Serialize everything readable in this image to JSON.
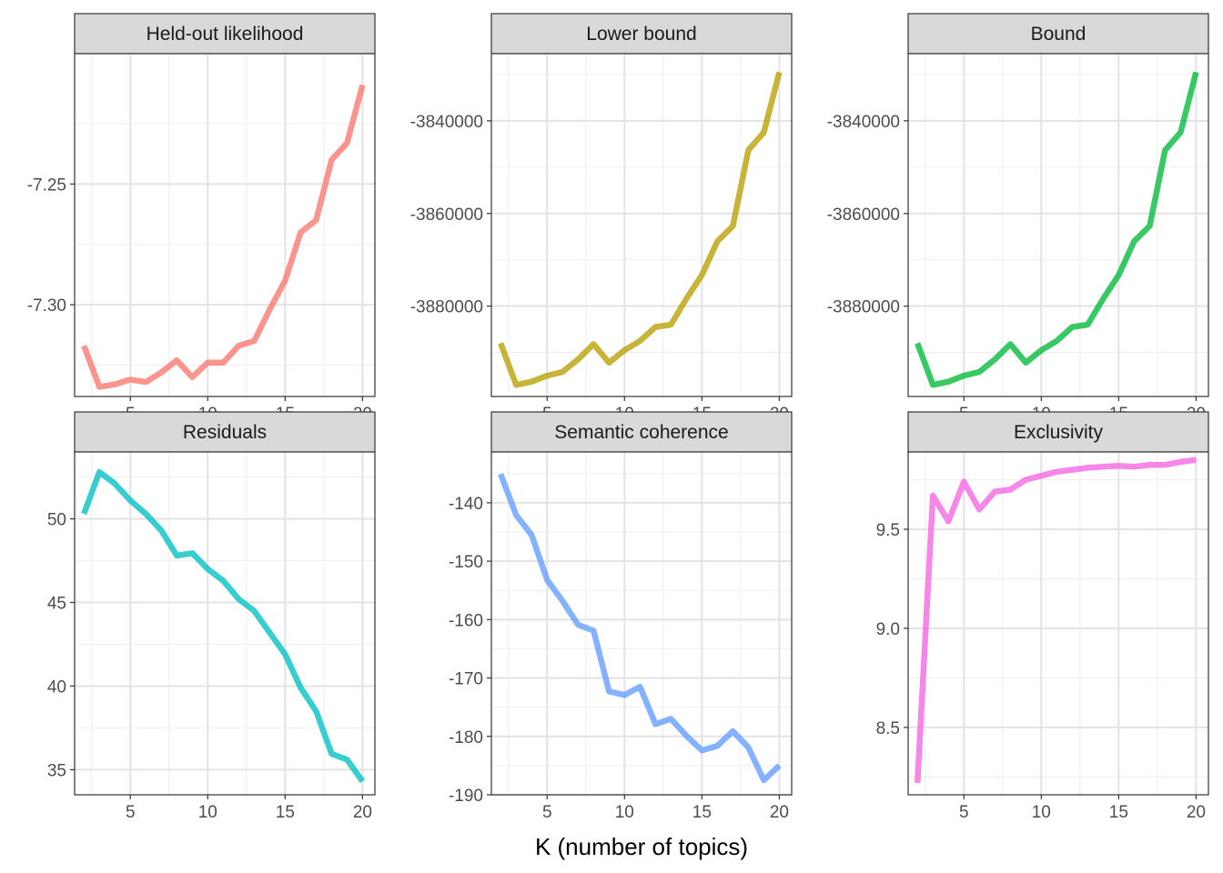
{
  "chart_data": {
    "type": "line",
    "xlabel": "K (number of topics)",
    "x": [
      2,
      3,
      4,
      5,
      6,
      7,
      8,
      9,
      10,
      11,
      12,
      13,
      14,
      15,
      16,
      17,
      18,
      19,
      20
    ],
    "xticks": [
      5,
      10,
      15,
      20
    ],
    "xlim": [
      1.4,
      20.8
    ],
    "grid": true,
    "panels": [
      {
        "title": "Held-out likelihood",
        "color": "#F8766D",
        "ylim": [
          -7.338,
          -7.196
        ],
        "yticks": [
          -7.25,
          -7.3
        ],
        "ytick_labels": [
          "-7.25",
          "-7.30"
        ],
        "values": [
          -7.317,
          -7.334,
          -7.333,
          -7.331,
          -7.332,
          -7.328,
          -7.323,
          -7.33,
          -7.324,
          -7.324,
          -7.317,
          -7.315,
          -7.302,
          -7.29,
          -7.27,
          -7.265,
          -7.24,
          -7.233,
          -7.209
        ]
      },
      {
        "title": "Lower bound",
        "color": "#B79F00",
        "ylim": [
          -3899500,
          -3825500
        ],
        "yticks": [
          -3840000,
          -3860000,
          -3880000
        ],
        "ytick_labels": [
          "-3840000",
          "-3860000",
          "-3880000"
        ],
        "values": [
          -3888000,
          -3897000,
          -3896300,
          -3895000,
          -3894200,
          -3891500,
          -3888200,
          -3892200,
          -3889500,
          -3887500,
          -3884500,
          -3884000,
          -3878400,
          -3873300,
          -3866000,
          -3862700,
          -3846300,
          -3842500,
          -3829500
        ]
      },
      {
        "title": "Bound",
        "color": "#00BA38",
        "ylim": [
          -3899500,
          -3825500
        ],
        "yticks": [
          -3840000,
          -3860000,
          -3880000
        ],
        "ytick_labels": [
          "-3840000",
          "-3860000",
          "-3880000"
        ],
        "values": [
          -3888000,
          -3897000,
          -3896300,
          -3895000,
          -3894200,
          -3891500,
          -3888200,
          -3892200,
          -3889500,
          -3887500,
          -3884500,
          -3884000,
          -3878400,
          -3873300,
          -3866000,
          -3862700,
          -3846300,
          -3842500,
          -3829500
        ]
      },
      {
        "title": "Residuals",
        "color": "#00BFC4",
        "ylim": [
          33.5,
          54.0
        ],
        "yticks": [
          50,
          45,
          40,
          35
        ],
        "ytick_labels": [
          "50",
          "45",
          "40",
          "35"
        ],
        "values": [
          50.3,
          52.8,
          52.1,
          51.1,
          50.3,
          49.3,
          47.8,
          47.95,
          47.0,
          46.3,
          45.2,
          44.5,
          43.2,
          41.9,
          39.9,
          38.5,
          35.95,
          35.6,
          34.3
        ]
      },
      {
        "title": "Semantic coherence",
        "color": "#619CFF",
        "ylim": [
          -190.0,
          -131.3
        ],
        "yticks": [
          -140,
          -150,
          -160,
          -170,
          -180,
          -190
        ],
        "ytick_labels": [
          "-140",
          "-150",
          "-160",
          "-170",
          "-180",
          "-190"
        ],
        "values": [
          -135.1,
          -142.1,
          -145.5,
          -153.2,
          -156.8,
          -160.9,
          -161.9,
          -172.3,
          -172.9,
          -171.5,
          -177.9,
          -177.0,
          -179.9,
          -182.4,
          -181.6,
          -179.1,
          -181.9,
          -187.5,
          -185.0
        ]
      },
      {
        "title": "Exclusivity",
        "color": "#F564E3",
        "ylim": [
          8.16,
          9.89
        ],
        "yticks": [
          9.5,
          9.0,
          8.5
        ],
        "ytick_labels": [
          "9.5",
          "9.0",
          "8.5"
        ],
        "values": [
          8.22,
          9.67,
          9.54,
          9.74,
          9.6,
          9.69,
          9.7,
          9.75,
          9.77,
          9.79,
          9.8,
          9.81,
          9.815,
          9.82,
          9.815,
          9.825,
          9.825,
          9.84,
          9.85
        ]
      }
    ]
  }
}
